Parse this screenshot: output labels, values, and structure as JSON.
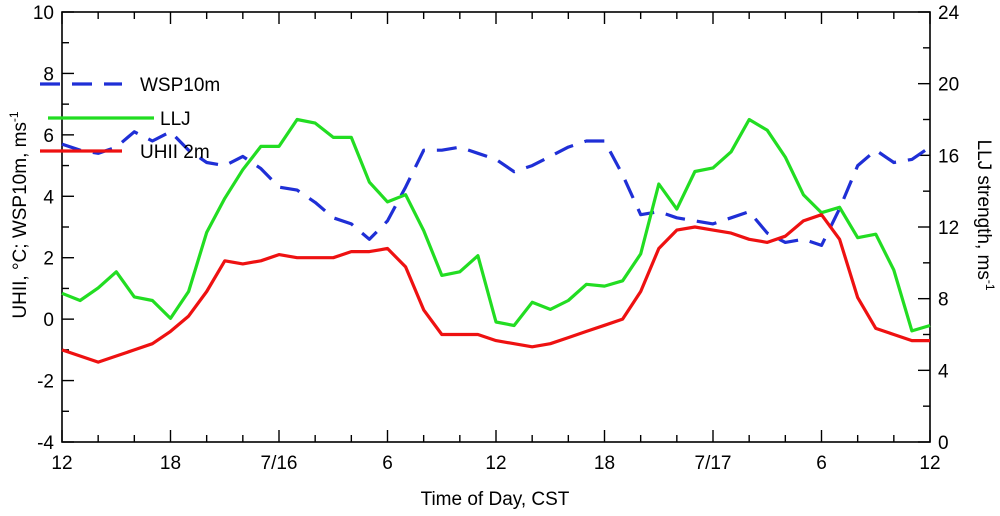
{
  "chart_data": {
    "type": "line",
    "xlabel": "Time of Day, CST",
    "ylabel_left": "UHII, °C; WSP10m, ms",
    "ylabel_left_sup": "-1",
    "ylabel_right": "LLJ strength, ms",
    "ylabel_right_sup": "-1",
    "x_unit": "hours",
    "xlim": [
      0,
      48
    ],
    "ylim_left": [
      -4,
      10
    ],
    "ylim_right": [
      0,
      24
    ],
    "x_ticks": [
      {
        "value": 0,
        "label": "12"
      },
      {
        "value": 6,
        "label": "18"
      },
      {
        "value": 12,
        "label": "7/16"
      },
      {
        "value": 18,
        "label": "6"
      },
      {
        "value": 24,
        "label": "12"
      },
      {
        "value": 30,
        "label": "18"
      },
      {
        "value": 36,
        "label": "7/17"
      },
      {
        "value": 42,
        "label": "6"
      },
      {
        "value": 48,
        "label": "12"
      }
    ],
    "y_ticks_left": [
      "-4",
      "-2",
      "0",
      "2",
      "4",
      "6",
      "8",
      "10"
    ],
    "y_ticks_right": [
      "0",
      "4",
      "8",
      "12",
      "16",
      "20",
      "24"
    ],
    "legend_position": "top-left",
    "grid": false,
    "series": [
      {
        "name": "WSP10m",
        "axis": "left",
        "color": "#1f2fd6",
        "style": "dashed",
        "x": [
          0,
          1,
          2,
          3,
          4,
          5,
          6,
          7,
          8,
          9,
          10,
          11,
          12,
          13,
          14,
          15,
          16,
          17,
          18,
          19,
          20,
          21,
          22,
          23,
          24,
          25,
          26,
          27,
          28,
          29,
          30,
          31,
          32,
          33,
          34,
          35,
          36,
          37,
          38,
          39,
          40,
          41,
          42,
          43,
          44,
          45,
          46,
          47,
          48
        ],
        "values": [
          5.7,
          5.5,
          5.4,
          5.6,
          6.1,
          5.8,
          6.1,
          5.5,
          5.1,
          5.0,
          5.3,
          4.9,
          4.3,
          4.2,
          3.8,
          3.3,
          3.1,
          2.6,
          3.2,
          4.3,
          5.5,
          5.5,
          5.6,
          5.4,
          5.2,
          4.8,
          5.0,
          5.3,
          5.6,
          5.8,
          5.8,
          4.7,
          3.4,
          3.5,
          3.3,
          3.2,
          3.1,
          3.3,
          3.5,
          2.8,
          2.5,
          2.6,
          2.4,
          3.6,
          5.0,
          5.5,
          5.1,
          5.2,
          5.6
        ]
      },
      {
        "name": "LLJ",
        "axis": "right",
        "color": "#22dd22",
        "style": "solid",
        "x": [
          0,
          1,
          2,
          3,
          4,
          5,
          6,
          7,
          8,
          9,
          10,
          11,
          12,
          13,
          14,
          15,
          16,
          17,
          18,
          19,
          20,
          21,
          22,
          23,
          24,
          25,
          26,
          27,
          28,
          29,
          30,
          31,
          32,
          33,
          34,
          35,
          36,
          37,
          38,
          39,
          40,
          41,
          42,
          43,
          44,
          45,
          46,
          47,
          48
        ],
        "values": [
          8.3,
          7.9,
          8.6,
          9.5,
          8.1,
          7.9,
          6.9,
          8.4,
          11.7,
          13.6,
          15.2,
          16.5,
          16.5,
          18.0,
          17.8,
          17.0,
          17.0,
          14.5,
          13.4,
          13.8,
          11.8,
          9.3,
          9.5,
          10.4,
          6.7,
          6.5,
          7.8,
          7.4,
          7.9,
          8.8,
          8.7,
          9.0,
          10.5,
          14.4,
          13.0,
          15.1,
          15.3,
          16.2,
          18.0,
          17.4,
          15.9,
          13.8,
          12.8,
          13.1,
          11.4,
          11.6,
          9.6,
          6.2,
          6.5
        ]
      },
      {
        "name": "UHII 2m",
        "axis": "left",
        "color": "#ee1111",
        "style": "solid",
        "x": [
          0,
          1,
          2,
          3,
          4,
          5,
          6,
          7,
          8,
          9,
          10,
          11,
          12,
          13,
          14,
          15,
          16,
          17,
          18,
          19,
          20,
          21,
          22,
          23,
          24,
          25,
          26,
          27,
          28,
          29,
          30,
          31,
          32,
          33,
          34,
          35,
          36,
          37,
          38,
          39,
          40,
          41,
          42,
          43,
          44,
          45,
          46,
          47,
          48
        ],
        "values": [
          -1.0,
          -1.2,
          -1.4,
          -1.2,
          -1.0,
          -0.8,
          -0.4,
          0.1,
          0.9,
          1.9,
          1.8,
          1.9,
          2.1,
          2.0,
          2.0,
          2.0,
          2.2,
          2.2,
          2.3,
          1.7,
          0.3,
          -0.5,
          -0.5,
          -0.5,
          -0.7,
          -0.8,
          -0.9,
          -0.8,
          -0.6,
          -0.4,
          -0.2,
          0.0,
          0.9,
          2.3,
          2.9,
          3.0,
          2.9,
          2.8,
          2.6,
          2.5,
          2.7,
          3.2,
          3.4,
          2.6,
          0.7,
          -0.3,
          -0.5,
          -0.7,
          -0.7
        ]
      }
    ]
  }
}
